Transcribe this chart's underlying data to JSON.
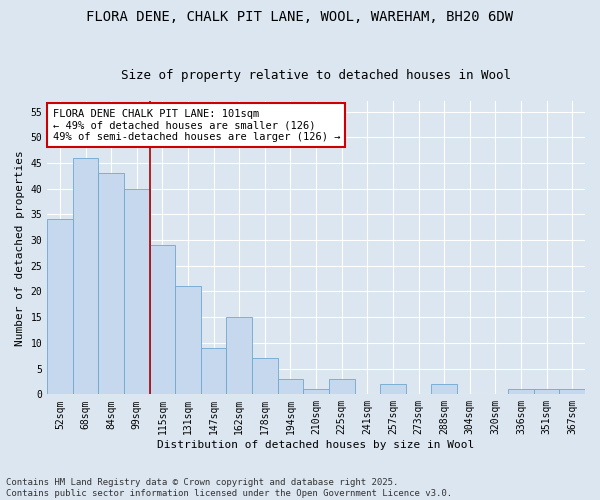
{
  "title1": "FLORA DENE, CHALK PIT LANE, WOOL, WAREHAM, BH20 6DW",
  "title2": "Size of property relative to detached houses in Wool",
  "xlabel": "Distribution of detached houses by size in Wool",
  "ylabel": "Number of detached properties",
  "categories": [
    "52sqm",
    "68sqm",
    "84sqm",
    "99sqm",
    "115sqm",
    "131sqm",
    "147sqm",
    "162sqm",
    "178sqm",
    "194sqm",
    "210sqm",
    "225sqm",
    "241sqm",
    "257sqm",
    "273sqm",
    "288sqm",
    "304sqm",
    "320sqm",
    "336sqm",
    "351sqm",
    "367sqm"
  ],
  "values": [
    34,
    46,
    43,
    40,
    29,
    21,
    9,
    15,
    7,
    3,
    1,
    3,
    0,
    2,
    0,
    2,
    0,
    0,
    1,
    1,
    1
  ],
  "bar_color": "#c5d8ed",
  "bar_edge_color": "#6fa8d0",
  "vline_color": "#aa0000",
  "vline_x": 3.5,
  "annotation_text": "FLORA DENE CHALK PIT LANE: 101sqm\n← 49% of detached houses are smaller (126)\n49% of semi-detached houses are larger (126) →",
  "annotation_box_color": "#cc0000",
  "ylim": [
    0,
    57
  ],
  "yticks": [
    0,
    5,
    10,
    15,
    20,
    25,
    30,
    35,
    40,
    45,
    50,
    55
  ],
  "fig_bg": "#dce6f0",
  "plot_bg": "#dce6f0",
  "grid_color": "#ffffff",
  "footer_text": "Contains HM Land Registry data © Crown copyright and database right 2025.\nContains public sector information licensed under the Open Government Licence v3.0.",
  "title1_fontsize": 10,
  "title2_fontsize": 9,
  "xlabel_fontsize": 8,
  "ylabel_fontsize": 8,
  "tick_fontsize": 7,
  "annotation_fontsize": 7.5,
  "footer_fontsize": 6.5
}
